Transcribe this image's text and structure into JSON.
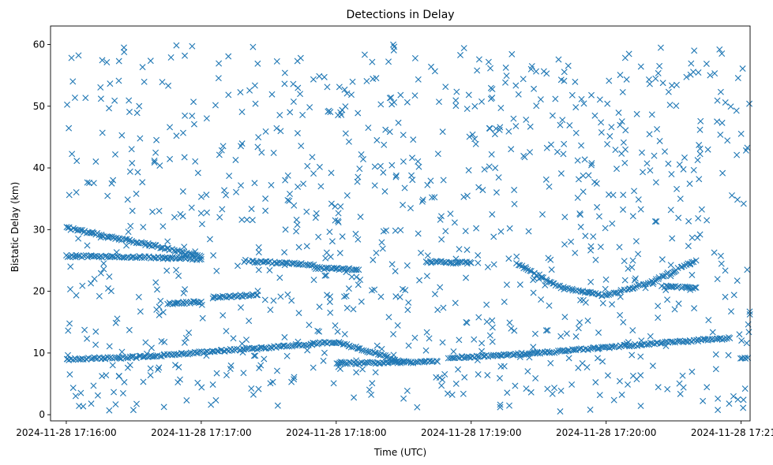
{
  "chart_data": {
    "type": "scatter",
    "title": "Detections in Delay",
    "xlabel": "Time (UTC)",
    "ylabel": "Bistatic Delay (km)",
    "x_tick_labels": [
      "2024-11-28 17:16:00",
      "2024-11-28 17:17:00",
      "2024-11-28 17:18:00",
      "2024-11-28 17:19:00",
      "2024-11-28 17:20:00",
      "2024-11-28 17:21:00"
    ],
    "y_ticks": [
      0,
      10,
      20,
      30,
      40,
      50,
      60
    ],
    "xlim": [
      "2024-11-28 17:15:53",
      "2024-11-28 17:21:04"
    ],
    "ylim": [
      -1,
      63
    ],
    "grid": false,
    "legend": "none",
    "marker": "x",
    "color": "#1f77b4",
    "tracks": [
      {
        "x": [
          "2024-11-28 17:16:00",
          "2024-11-28 17:16:20",
          "2024-11-28 17:16:40",
          "2024-11-28 17:17:00"
        ],
        "y": [
          30.3,
          28.8,
          27.3,
          25.6
        ]
      },
      {
        "x": [
          "2024-11-28 17:16:00",
          "2024-11-28 17:16:30",
          "2024-11-28 17:17:00"
        ],
        "y": [
          25.7,
          25.6,
          25.2
        ]
      },
      {
        "x": [
          "2024-11-28 17:16:00",
          "2024-11-28 17:16:30",
          "2024-11-28 17:17:00",
          "2024-11-28 17:17:30",
          "2024-11-28 17:18:00",
          "2024-11-28 17:18:30"
        ],
        "y": [
          9.0,
          9.3,
          10.1,
          10.9,
          11.8,
          8.5
        ]
      },
      {
        "x": [
          "2024-11-28 17:16:45",
          "2024-11-28 17:17:00"
        ],
        "y": [
          18.0,
          18.3
        ]
      },
      {
        "x": [
          "2024-11-28 17:17:05",
          "2024-11-28 17:17:25"
        ],
        "y": [
          19.0,
          19.4
        ]
      },
      {
        "x": [
          "2024-11-28 17:17:20",
          "2024-11-28 17:17:50"
        ],
        "y": [
          24.9,
          24.3
        ]
      },
      {
        "x": [
          "2024-11-28 17:17:50",
          "2024-11-28 17:18:10"
        ],
        "y": [
          23.8,
          23.5
        ]
      },
      {
        "x": [
          "2024-11-28 17:18:00",
          "2024-11-28 17:18:45"
        ],
        "y": [
          8.3,
          8.6
        ]
      },
      {
        "x": [
          "2024-11-28 17:18:40",
          "2024-11-28 17:19:00"
        ],
        "y": [
          24.8,
          24.6
        ]
      },
      {
        "x": [
          "2024-11-28 17:18:50",
          "2024-11-28 17:19:30",
          "2024-11-28 17:20:00",
          "2024-11-28 17:20:30",
          "2024-11-28 17:20:55"
        ],
        "y": [
          9.2,
          10.0,
          10.9,
          11.8,
          12.4
        ]
      },
      {
        "x": [
          "2024-11-28 17:19:20",
          "2024-11-28 17:19:40",
          "2024-11-28 17:20:00",
          "2024-11-28 17:20:20",
          "2024-11-28 17:20:40"
        ],
        "y": [
          24.5,
          20.6,
          19.3,
          21.5,
          25.0
        ]
      },
      {
        "x": [
          "2024-11-28 17:20:25",
          "2024-11-28 17:20:40"
        ],
        "y": [
          20.8,
          20.6
        ]
      },
      {
        "x": [
          "2024-11-28 17:21:00",
          "2024-11-28 17:21:03"
        ],
        "y": [
          9.0,
          9.2
        ]
      }
    ],
    "clutter": {
      "x_range": [
        "2024-11-28 17:16:00",
        "2024-11-28 17:21:04"
      ],
      "y_range": [
        0.5,
        60
      ],
      "count": 950
    }
  }
}
